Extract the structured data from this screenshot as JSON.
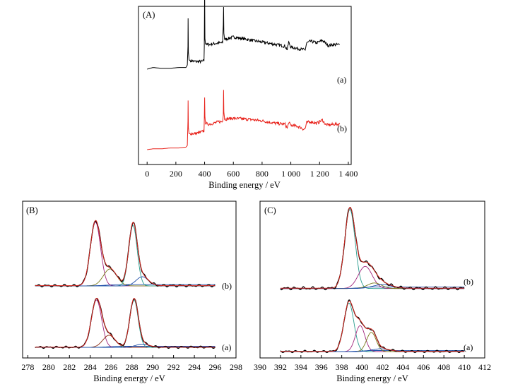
{
  "chart_data": [
    {
      "panel": "(A)",
      "type": "line",
      "xlabel": "Binding energy / eV",
      "xlim": [
        -60,
        1420
      ],
      "xticks": [
        0,
        200,
        400,
        600,
        800,
        1000,
        1200,
        1400
      ],
      "xtick_labels": [
        "0",
        "200",
        "400",
        "600",
        "800",
        "1 000",
        "1 200",
        "1 400"
      ],
      "series": [
        {
          "name": "(a)",
          "color": "#000000",
          "points": [
            [
              0,
              0.35
            ],
            [
              40,
              0.37
            ],
            [
              100,
              0.36
            ],
            [
              160,
              0.36
            ],
            [
              220,
              0.37
            ],
            [
              270,
              0.37
            ],
            [
              280,
              0.4
            ],
            [
              284,
              0.62
            ],
            [
              285,
              0.95
            ],
            [
              287,
              0.55
            ],
            [
              292,
              0.46
            ],
            [
              300,
              0.45
            ],
            [
              340,
              0.44
            ],
            [
              380,
              0.44
            ],
            [
              396,
              0.45
            ],
            [
              398,
              0.62
            ],
            [
              400,
              1.3
            ],
            [
              402,
              0.72
            ],
            [
              406,
              0.66
            ],
            [
              420,
              0.64
            ],
            [
              460,
              0.65
            ],
            [
              500,
              0.66
            ],
            [
              525,
              0.66
            ],
            [
              530,
              0.88
            ],
            [
              532,
              1.08
            ],
            [
              534,
              0.78
            ],
            [
              540,
              0.7
            ],
            [
              600,
              0.73
            ],
            [
              700,
              0.7
            ],
            [
              800,
              0.67
            ],
            [
              900,
              0.64
            ],
            [
              960,
              0.62
            ],
            [
              975,
              0.58
            ],
            [
              985,
              0.67
            ],
            [
              1000,
              0.61
            ],
            [
              1060,
              0.59
            ],
            [
              1090,
              0.58
            ],
            [
              1100,
              0.58
            ],
            [
              1110,
              0.66
            ],
            [
              1140,
              0.68
            ],
            [
              1180,
              0.66
            ],
            [
              1220,
              0.69
            ],
            [
              1240,
              0.66
            ],
            [
              1260,
              0.63
            ],
            [
              1300,
              0.64
            ],
            [
              1340,
              0.64
            ]
          ]
        },
        {
          "name": "(b)",
          "color": "#e8231c",
          "points": [
            [
              0,
              0.0
            ],
            [
              40,
              0.01
            ],
            [
              100,
              0.01
            ],
            [
              160,
              0.02
            ],
            [
              220,
              0.02
            ],
            [
              270,
              0.03
            ],
            [
              280,
              0.05
            ],
            [
              284,
              0.34
            ],
            [
              285,
              0.58
            ],
            [
              287,
              0.26
            ],
            [
              292,
              0.19
            ],
            [
              300,
              0.19
            ],
            [
              340,
              0.19
            ],
            [
              380,
              0.21
            ],
            [
              396,
              0.22
            ],
            [
              398,
              0.36
            ],
            [
              400,
              0.6
            ],
            [
              402,
              0.38
            ],
            [
              406,
              0.32
            ],
            [
              420,
              0.3
            ],
            [
              460,
              0.31
            ],
            [
              500,
              0.33
            ],
            [
              525,
              0.33
            ],
            [
              530,
              0.42
            ],
            [
              532,
              0.72
            ],
            [
              534,
              0.45
            ],
            [
              540,
              0.36
            ],
            [
              600,
              0.37
            ],
            [
              700,
              0.36
            ],
            [
              800,
              0.34
            ],
            [
              900,
              0.31
            ],
            [
              960,
              0.3
            ],
            [
              975,
              0.25
            ],
            [
              985,
              0.32
            ],
            [
              1000,
              0.29
            ],
            [
              1060,
              0.27
            ],
            [
              1090,
              0.24
            ],
            [
              1100,
              0.25
            ],
            [
              1110,
              0.32
            ],
            [
              1140,
              0.33
            ],
            [
              1180,
              0.31
            ],
            [
              1220,
              0.35
            ],
            [
              1240,
              0.3
            ],
            [
              1260,
              0.29
            ],
            [
              1300,
              0.3
            ],
            [
              1340,
              0.3
            ]
          ]
        }
      ]
    },
    {
      "panel": "(B)",
      "type": "line",
      "xlabel": "Binding energy / eV",
      "xlim": [
        277.5,
        298
      ],
      "xticks": [
        278,
        280,
        282,
        284,
        286,
        288,
        290,
        292,
        294,
        296,
        298
      ],
      "curves": [
        {
          "name": "(a)",
          "baseline": 0,
          "raw_color": "#000000",
          "fit_color": "#d4241c",
          "components": [
            {
              "center": 284.6,
              "height": 0.86,
              "fwhm": 1.15,
              "color": "#a0257d"
            },
            {
              "center": 285.8,
              "height": 0.22,
              "fwhm": 1.4,
              "color": "#8c2a10"
            },
            {
              "center": 288.2,
              "height": 0.86,
              "fwhm": 0.95,
              "color": "#2a9d8f"
            },
            {
              "center": 289.0,
              "height": 0.06,
              "fwhm": 1.5,
              "color": "#1f4ea8"
            }
          ]
        },
        {
          "name": "(b)",
          "baseline": 0,
          "raw_color": "#000000",
          "fit_color": "#d4241c",
          "components": [
            {
              "center": 284.5,
              "height": 0.98,
              "fwhm": 1.15,
              "color": "#a0257d"
            },
            {
              "center": 285.9,
              "height": 0.26,
              "fwhm": 1.5,
              "color": "#7a7a1a"
            },
            {
              "center": 288.1,
              "height": 0.93,
              "fwhm": 0.95,
              "color": "#2a9d8f"
            },
            {
              "center": 289.0,
              "height": 0.14,
              "fwhm": 1.4,
              "color": "#1f4ea8"
            }
          ]
        }
      ]
    },
    {
      "panel": "(C)",
      "type": "line",
      "xlabel": "Binding energy / eV",
      "xlim": [
        390,
        412
      ],
      "xticks": [
        390,
        392,
        394,
        396,
        398,
        400,
        402,
        404,
        406,
        408,
        410,
        412
      ],
      "curves": [
        {
          "name": "(a)",
          "baseline": 0,
          "raw_color": "#000000",
          "fit_color": "#d4241c",
          "components": [
            {
              "center": 398.7,
              "height": 0.86,
              "fwhm": 1.15,
              "color": "#2a9d8f"
            },
            {
              "center": 399.8,
              "height": 0.46,
              "fwhm": 1.1,
              "color": "#a0257d"
            },
            {
              "center": 400.9,
              "height": 0.34,
              "fwhm": 1.1,
              "color": "#7a7a1a"
            },
            {
              "center": 401.8,
              "height": 0.05,
              "fwhm": 2.0,
              "color": "#1f4ea8"
            }
          ]
        },
        {
          "name": "(b)",
          "baseline": 0,
          "raw_color": "#000000",
          "fit_color": "#d4241c",
          "components": [
            {
              "center": 398.8,
              "height": 1.0,
              "fwhm": 1.2,
              "color": "#2a9d8f"
            },
            {
              "center": 400.3,
              "height": 0.28,
              "fwhm": 1.6,
              "color": "#a0257d"
            },
            {
              "center": 401.2,
              "height": 0.07,
              "fwhm": 1.6,
              "color": "#7a7a1a"
            },
            {
              "center": 402.0,
              "height": 0.05,
              "fwhm": 2.2,
              "color": "#1f4ea8"
            }
          ]
        }
      ]
    }
  ]
}
